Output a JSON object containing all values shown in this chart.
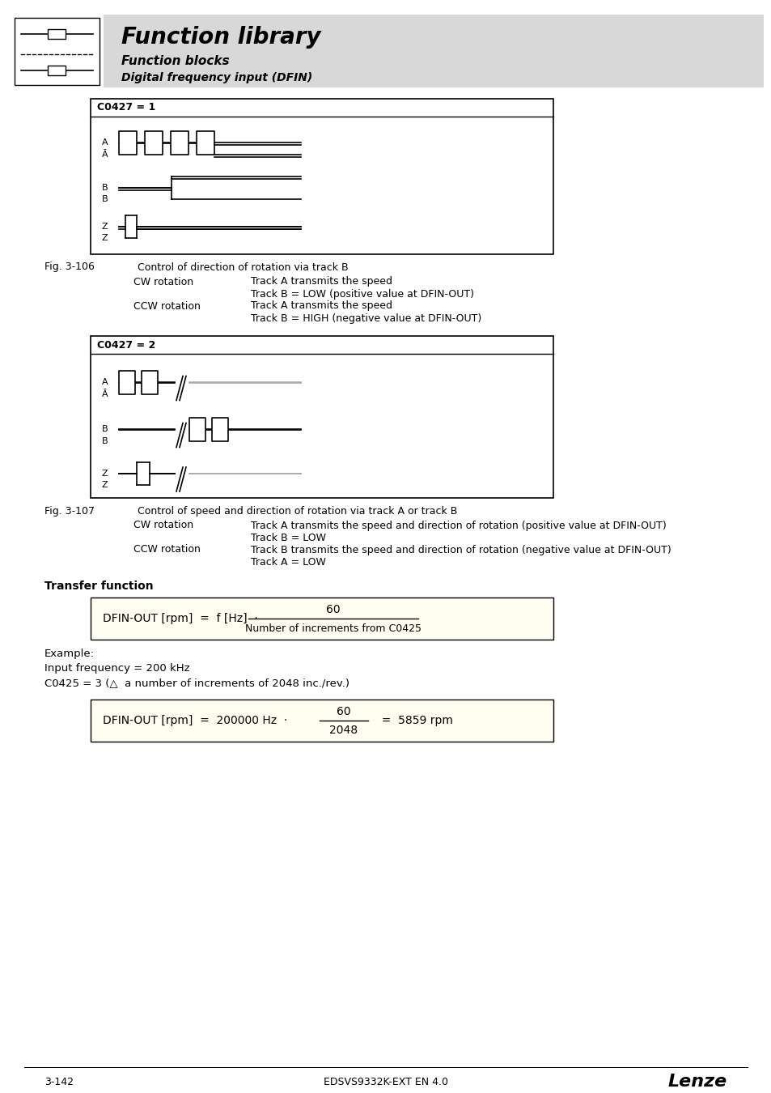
{
  "title": "Function library",
  "subtitle": "Function blocks",
  "subtitle2": "Digital frequency input (DFIN)",
  "header_bg": "#d8d8d8",
  "page_number": "3-142",
  "doc_number": "EDSVS9332K-EXT EN 4.0",
  "brand": "Lenze",
  "fig1_label": "C0427 = 1",
  "fig2_label": "C0427 = 2",
  "fig_ref1": "Fig. 3-106",
  "fig_ref2": "Fig. 3-107",
  "fig1_caption": "Control of direction of rotation via track B",
  "fig2_caption": "Control of speed and direction of rotation via track A or track B",
  "cw_label": "CW rotation",
  "ccw_label": "CCW rotation",
  "fig1_cw_line1": "Track A transmits the speed",
  "fig1_cw_line2": "Track B = LOW (positive value at DFIN-OUT)",
  "fig1_ccw_line1": "Track A transmits the speed",
  "fig1_ccw_line2": "Track B = HIGH (negative value at DFIN-OUT)",
  "fig2_cw_line1": "Track A transmits the speed and direction of rotation (positive value at DFIN-OUT)",
  "fig2_cw_line2": "Track B = LOW",
  "fig2_ccw_line1": "Track B transmits the speed and direction of rotation (negative value at DFIN-OUT)",
  "fig2_ccw_line2": "Track A = LOW",
  "transfer_title": "Transfer function",
  "transfer_formula": "DFIN-OUT [rpm]  =  f [Hz]  ·",
  "transfer_numerator": "60",
  "transfer_denominator": "Number of increments from C0425",
  "example_label": "Example:",
  "example_line1": "Input frequency = 200 kHz",
  "example_line2": "C0425 = 3 (△  a number of increments of 2048 inc./rev.)",
  "formula2": "DFIN-OUT [rpm]  =  200000 Hz  ·",
  "formula2_num": "60",
  "formula2_den": "2048",
  "formula2_end": "=  5859 rpm",
  "background": "#ffffff",
  "box_border": "#000000",
  "text_color": "#000000"
}
